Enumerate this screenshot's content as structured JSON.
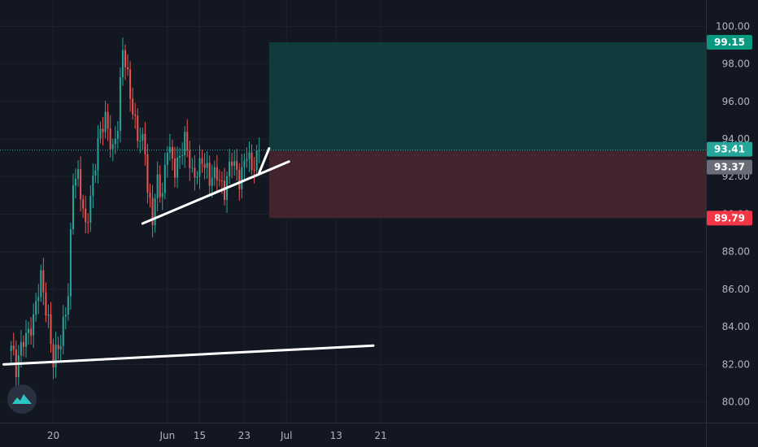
{
  "colors": {
    "background": "#131722",
    "grid": "#1e222d",
    "up": "#26a69a",
    "down": "#ef5350",
    "axis_text": "#b2b5be",
    "trendline": "#ffffff",
    "target_zone": "#0f3b3d",
    "stop_zone": "#43242d",
    "target_tag": "#089981",
    "stop_tag": "#f23645",
    "last_tag": "#26a69a",
    "entry_tag": "#6a6d78",
    "logo_bg": "#2a3040",
    "logo_fg": "#2ec4c4"
  },
  "logo": {
    "icon": "tradingview-cloud-icon"
  },
  "price_tags": {
    "target": "99.15",
    "last": "93.41",
    "entry": "93.37",
    "stop": "89.79"
  },
  "chart_data": {
    "type": "candlestick",
    "y_ticks": [
      "80.00",
      "82.00",
      "84.00",
      "86.00",
      "88.00",
      "90.00",
      "92.00",
      "94.00",
      "96.00",
      "98.00",
      "100.00"
    ],
    "x_ticks": [
      "20",
      "Jun",
      "15",
      "23",
      "Jul",
      "13",
      "21"
    ],
    "ylim": [
      78.9,
      101.4
    ],
    "grid": true,
    "last_price": 93.41,
    "position": {
      "entry": 93.37,
      "target": 99.15,
      "stop": 89.79
    },
    "anchors": [
      {
        "i": 0,
        "p": 83.0
      },
      {
        "i": 2,
        "p": 81.5
      },
      {
        "i": 5,
        "p": 83.5
      },
      {
        "i": 9,
        "p": 84.3
      },
      {
        "i": 12,
        "p": 86.5
      },
      {
        "i": 15,
        "p": 84.5
      },
      {
        "i": 17,
        "p": 82.2
      },
      {
        "i": 20,
        "p": 83.0
      },
      {
        "i": 23,
        "p": 86.0
      },
      {
        "i": 25,
        "p": 92.0
      },
      {
        "i": 27,
        "p": 91.8
      },
      {
        "i": 30,
        "p": 89.2
      },
      {
        "i": 33,
        "p": 92.0
      },
      {
        "i": 35,
        "p": 93.7
      },
      {
        "i": 38,
        "p": 95.0
      },
      {
        "i": 41,
        "p": 93.6
      },
      {
        "i": 43,
        "p": 94.8
      },
      {
        "i": 45,
        "p": 98.6
      },
      {
        "i": 47,
        "p": 97.2
      },
      {
        "i": 51,
        "p": 94.3
      },
      {
        "i": 54,
        "p": 93.3
      },
      {
        "i": 55,
        "p": 91.0
      },
      {
        "i": 57,
        "p": 90.0
      },
      {
        "i": 59,
        "p": 92.0
      },
      {
        "i": 61,
        "p": 90.8
      },
      {
        "i": 63,
        "p": 93.5
      },
      {
        "i": 66,
        "p": 92.6
      },
      {
        "i": 70,
        "p": 93.8
      },
      {
        "i": 73,
        "p": 92.0
      },
      {
        "i": 77,
        "p": 93.0
      },
      {
        "i": 80,
        "p": 91.6
      },
      {
        "i": 83,
        "p": 92.4
      },
      {
        "i": 86,
        "p": 91.2
      },
      {
        "i": 89,
        "p": 92.8
      },
      {
        "i": 92,
        "p": 92.0
      },
      {
        "i": 95,
        "p": 93.3
      },
      {
        "i": 97,
        "p": 92.1
      },
      {
        "i": 100,
        "p": 93.41
      }
    ],
    "trendlines": [
      {
        "from": [
          -3,
          82.0
        ],
        "to": [
          146,
          83.0
        ]
      },
      {
        "from": [
          53,
          89.5
        ],
        "to": [
          112,
          92.8
        ]
      },
      {
        "from": [
          100,
          92.2
        ],
        "to": [
          104,
          93.5
        ]
      }
    ]
  }
}
